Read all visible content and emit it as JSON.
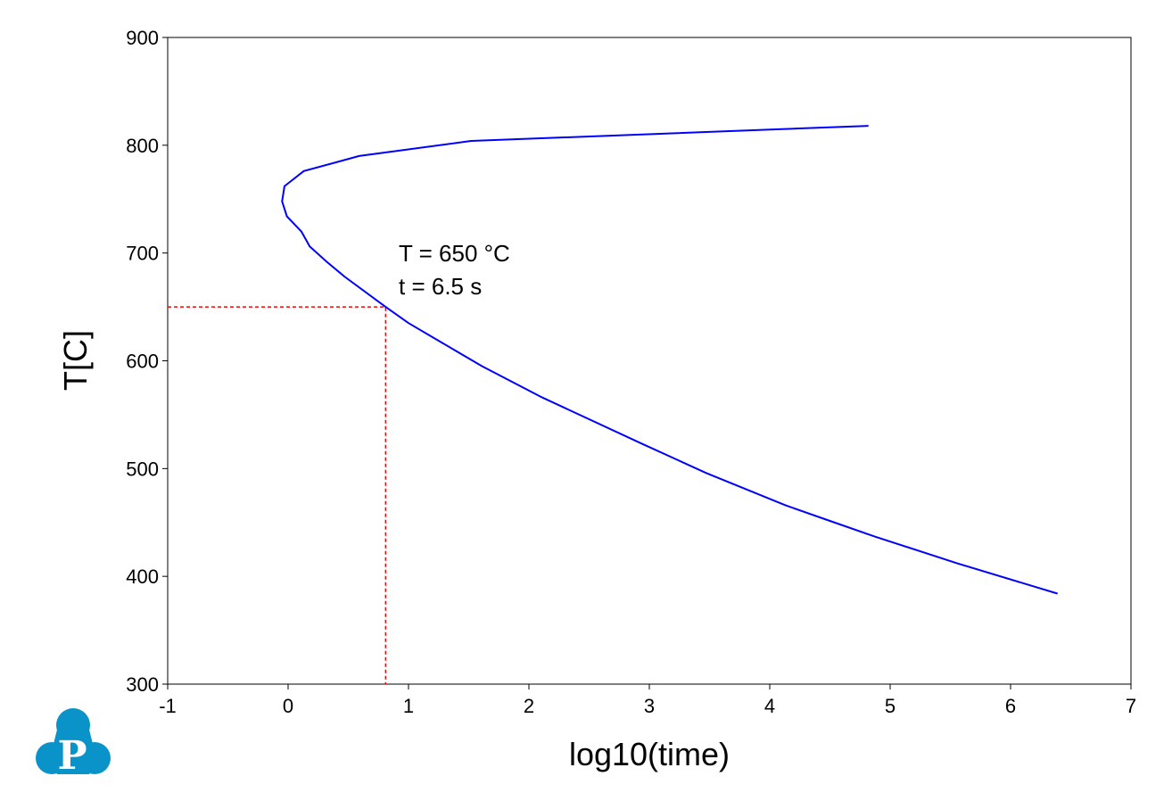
{
  "chart_data": {
    "type": "line",
    "xlabel": "log10(time)",
    "ylabel": "T[C]",
    "xlim": [
      -1,
      7
    ],
    "ylim": [
      300,
      900
    ],
    "xticks": [
      "-1",
      "0",
      "1",
      "2",
      "3",
      "4",
      "5",
      "6",
      "7"
    ],
    "yticks": [
      "300",
      "400",
      "500",
      "600",
      "700",
      "800",
      "900"
    ],
    "grid": false,
    "series": [
      {
        "color": "#0000ff",
        "x": [
          4.82,
          1.52,
          0.59,
          0.13,
          -0.03,
          -0.05,
          -0.01,
          0.11,
          0.18,
          0.32,
          0.47,
          0.81,
          1.0,
          1.61,
          2.11,
          2.94,
          3.47,
          4.13,
          4.46,
          4.87,
          5.56,
          6.39
        ],
        "y": [
          818,
          804,
          790,
          776,
          762,
          748,
          734,
          720,
          706,
          692,
          678,
          650,
          635,
          595,
          566,
          523,
          496,
          466,
          453,
          437,
          412,
          384
        ]
      }
    ],
    "guide": {
      "color": "#ff0000",
      "x": 0.81,
      "y": 650,
      "style": "dashed"
    },
    "annotations": [
      "T = 650 °C",
      "t = 6.5 s"
    ]
  },
  "logo": {
    "letter": "P",
    "color": "#0a93c8"
  }
}
